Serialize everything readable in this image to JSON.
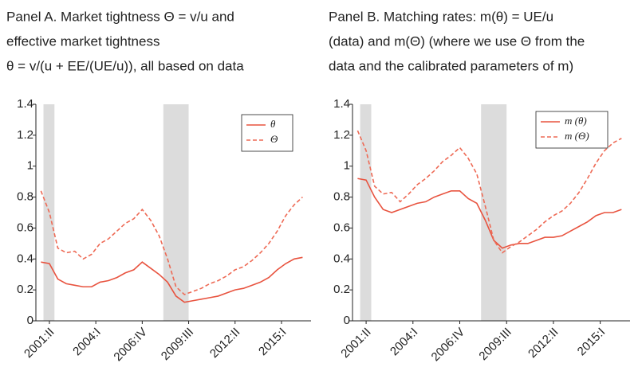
{
  "chart_data": [
    {
      "type": "line",
      "title": [
        "Panel A. Market tightness Θ = v/u and",
        "effective market tightness",
        "θ = v/(u + EE/(UE/u)), all based on data"
      ],
      "x": [
        2000.75,
        2001.25,
        2001.75,
        2002.25,
        2002.75,
        2003.25,
        2003.75,
        2004.25,
        2004.75,
        2005.25,
        2005.75,
        2006.25,
        2006.75,
        2007.25,
        2007.75,
        2008.25,
        2008.75,
        2009.25,
        2009.75,
        2010.25,
        2010.75,
        2011.25,
        2011.75,
        2012.25,
        2012.75,
        2013.25,
        2013.75,
        2014.25,
        2014.75,
        2015.25,
        2015.75,
        2016.25
      ],
      "series": [
        {
          "name": "θ",
          "color": "#e8533f",
          "dash": false,
          "values": [
            0.38,
            0.37,
            0.27,
            0.24,
            0.23,
            0.22,
            0.22,
            0.25,
            0.26,
            0.28,
            0.31,
            0.33,
            0.38,
            0.34,
            0.3,
            0.25,
            0.16,
            0.12,
            0.13,
            0.14,
            0.15,
            0.16,
            0.18,
            0.2,
            0.21,
            0.23,
            0.25,
            0.28,
            0.33,
            0.37,
            0.4,
            0.41
          ]
        },
        {
          "name": "Θ",
          "color": "#ee6a55",
          "dash": true,
          "values": [
            0.84,
            0.7,
            0.47,
            0.44,
            0.45,
            0.4,
            0.43,
            0.5,
            0.53,
            0.58,
            0.63,
            0.66,
            0.72,
            0.65,
            0.55,
            0.4,
            0.22,
            0.17,
            0.19,
            0.21,
            0.24,
            0.26,
            0.29,
            0.33,
            0.35,
            0.39,
            0.44,
            0.5,
            0.58,
            0.68,
            0.75,
            0.8
          ]
        }
      ],
      "shaded": [
        [
          2000.9,
          2001.55
        ],
        [
          2008.0,
          2009.5
        ]
      ],
      "xlim": [
        2000.45,
        2016.75
      ],
      "xticks": [
        {
          "value": 2001.25,
          "label": "2001:II"
        },
        {
          "value": 2004.0,
          "label": "2004:I"
        },
        {
          "value": 2006.75,
          "label": "2006:IV"
        },
        {
          "value": 2009.5,
          "label": "2009:III"
        },
        {
          "value": 2012.25,
          "label": "2012:II"
        },
        {
          "value": 2015.0,
          "label": "2015:I"
        }
      ],
      "ylim": [
        0,
        1.4
      ],
      "yticks": [
        0,
        0.2,
        0.4,
        0.6,
        0.8,
        1,
        1.2,
        1.4
      ],
      "legend": "upper right"
    },
    {
      "type": "line",
      "title": [
        "Panel B. Matching rates: m(θ) = UE/u",
        "(data) and m(Θ) (where we use Θ from the",
        "data and the calibrated parameters of m)"
      ],
      "x": [
        2000.75,
        2001.25,
        2001.75,
        2002.25,
        2002.75,
        2003.25,
        2003.75,
        2004.25,
        2004.75,
        2005.25,
        2005.75,
        2006.25,
        2006.75,
        2007.25,
        2007.75,
        2008.25,
        2008.75,
        2009.25,
        2009.75,
        2010.25,
        2010.75,
        2011.25,
        2011.75,
        2012.25,
        2012.75,
        2013.25,
        2013.75,
        2014.25,
        2014.75,
        2015.25,
        2015.75,
        2016.25
      ],
      "series": [
        {
          "name": "m (θ)",
          "color": "#e8533f",
          "dash": false,
          "values": [
            0.92,
            0.91,
            0.8,
            0.72,
            0.7,
            0.72,
            0.74,
            0.76,
            0.77,
            0.8,
            0.82,
            0.84,
            0.84,
            0.79,
            0.76,
            0.65,
            0.52,
            0.47,
            0.49,
            0.5,
            0.5,
            0.52,
            0.54,
            0.54,
            0.55,
            0.58,
            0.61,
            0.64,
            0.68,
            0.7,
            0.7,
            0.72
          ]
        },
        {
          "name": "m (Θ)",
          "color": "#ee6a55",
          "dash": true,
          "values": [
            1.23,
            1.1,
            0.87,
            0.82,
            0.83,
            0.77,
            0.82,
            0.88,
            0.92,
            0.97,
            1.03,
            1.07,
            1.12,
            1.05,
            0.95,
            0.74,
            0.52,
            0.44,
            0.48,
            0.51,
            0.55,
            0.59,
            0.64,
            0.68,
            0.71,
            0.76,
            0.83,
            0.92,
            1.02,
            1.1,
            1.15,
            1.18
          ]
        }
      ],
      "shaded": [
        [
          2000.9,
          2001.55
        ],
        [
          2008.0,
          2009.5
        ]
      ],
      "xlim": [
        2000.45,
        2016.75
      ],
      "xticks": [
        {
          "value": 2001.25,
          "label": "2001:II"
        },
        {
          "value": 2004.0,
          "label": "2004:I"
        },
        {
          "value": 2006.75,
          "label": "2006:IV"
        },
        {
          "value": 2009.5,
          "label": "2009:III"
        },
        {
          "value": 2012.25,
          "label": "2012:II"
        },
        {
          "value": 2015.0,
          "label": "2015:I"
        }
      ],
      "ylim": [
        0,
        1.4
      ],
      "yticks": [
        0,
        0.2,
        0.4,
        0.6,
        0.8,
        1,
        1.2,
        1.4
      ],
      "legend": "upper right"
    }
  ]
}
